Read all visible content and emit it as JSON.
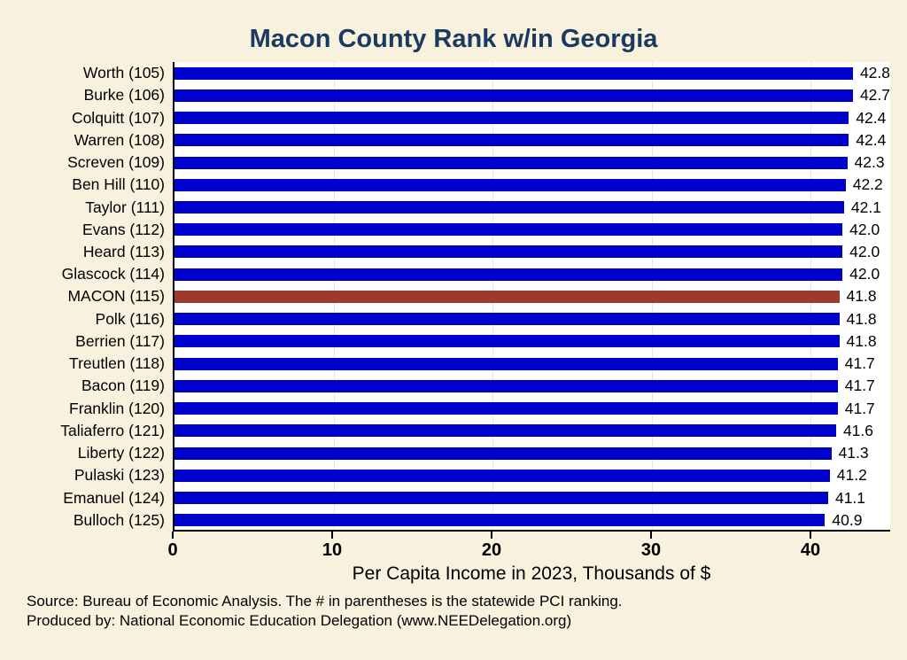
{
  "title": "Macon County Rank w/in Georgia",
  "chart_data": {
    "type": "bar",
    "orientation": "horizontal",
    "title": "Macon County Rank w/in Georgia",
    "categories": [
      "Worth (105)",
      "Burke (106)",
      "Colquitt (107)",
      "Warren (108)",
      "Screven (109)",
      "Ben Hill (110)",
      "Taylor (111)",
      "Evans (112)",
      "Heard (113)",
      "Glascock (114)",
      "MACON (115)",
      "Polk (116)",
      "Berrien (117)",
      "Treutlen (118)",
      "Bacon (119)",
      "Franklin (120)",
      "Taliaferro (121)",
      "Liberty (122)",
      "Pulaski (123)",
      "Emanuel (124)",
      "Bulloch (125)"
    ],
    "values": [
      42.8,
      42.7,
      42.4,
      42.4,
      42.3,
      42.2,
      42.1,
      42.0,
      42.0,
      42.0,
      41.8,
      41.8,
      41.8,
      41.7,
      41.7,
      41.7,
      41.6,
      41.3,
      41.2,
      41.1,
      40.9
    ],
    "highlight_index": 10,
    "highlight_category": "MACON (115)",
    "xlabel": "Per Capita Income in 2023, Thousands of $",
    "ylabel": "",
    "xlim": [
      0,
      45
    ],
    "xticks": [
      0,
      10,
      20,
      30,
      40
    ],
    "grid": true,
    "legend": "none",
    "bar_color": "#0000cd",
    "highlight_color": "#9c3a2e",
    "background_color": "#f8f1de",
    "plot_background_color": "#ffffff",
    "title_color": "#1a3a5f"
  },
  "footer": {
    "line1": "Source: Bureau of Economic Analysis. The # in parentheses is the statewide PCI ranking.",
    "line2": "Produced by: National Economic Education Delegation (www.NEEDelegation.org)"
  }
}
